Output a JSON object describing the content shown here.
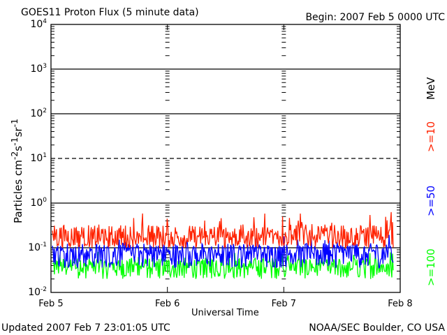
{
  "header": {
    "title": "GOES11 Proton Flux (5 minute data)",
    "begin": "Begin: 2007 Feb 5 0000 UTC"
  },
  "footer": {
    "updated": "Updated 2007 Feb  7 23:01:05 UTC",
    "credit": "NOAA/SEC Boulder, CO USA"
  },
  "colors": {
    "ge10": "#ff2200",
    "ge50": "#0000ff",
    "ge100": "#00ff00"
  },
  "chart_data": {
    "type": "line",
    "title": "GOES11 Proton Flux (5 minute data)",
    "xlabel": "Universal Time",
    "ylabel": "Particles cm-2s-1sr-1",
    "yscale": "log",
    "ylim": [
      0.01,
      10000
    ],
    "xlim": [
      "Feb 5",
      "Feb 8"
    ],
    "x_ticks": [
      "Feb 5",
      "Feb 6",
      "Feb 7",
      "Feb 8"
    ],
    "y_ticks": [
      "10-2",
      "10-1",
      "100",
      "101",
      "102",
      "103",
      "104"
    ],
    "grid": "horizontal at decades (dashed at 10^1)",
    "legend_placement": "right, vertical",
    "unit_label": "MeV",
    "series": [
      {
        "name": ">=10",
        "color": "#ff2200",
        "typical": 0.17,
        "min": 0.1,
        "max": 0.65
      },
      {
        "name": ">=50",
        "color": "#0000ff",
        "typical": 0.08,
        "min": 0.035,
        "max": 0.2
      },
      {
        "name": ">=100",
        "color": "#00ff00",
        "typical": 0.04,
        "min": 0.02,
        "max": 0.09
      }
    ]
  }
}
